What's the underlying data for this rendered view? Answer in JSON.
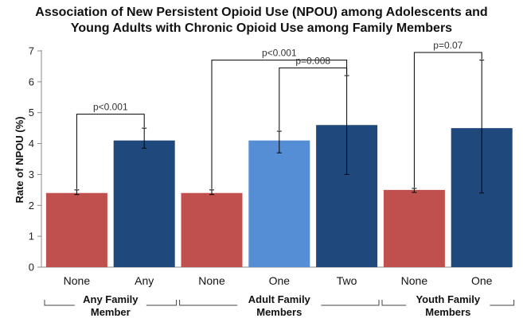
{
  "chart_data": {
    "type": "bar",
    "title_lines": [
      "Association of New Persistent Opioid Use (NPOU) among Adolescents and",
      "Young Adults with Chronic Opioid Use among Family Members"
    ],
    "ylabel": "Rate of NPOU (%)",
    "ylim": [
      0,
      7
    ],
    "yticks": [
      0,
      1,
      2,
      3,
      4,
      5,
      6,
      7
    ],
    "grid": false,
    "bars": [
      {
        "category": "None",
        "value": 2.4,
        "err_low": 2.35,
        "err_high": 2.5,
        "color": "#c0504d"
      },
      {
        "category": "Any",
        "value": 4.1,
        "err_low": 3.85,
        "err_high": 4.5,
        "color": "#1f497d"
      },
      {
        "category": "None",
        "value": 2.4,
        "err_low": 2.35,
        "err_high": 2.5,
        "color": "#c0504d"
      },
      {
        "category": "One",
        "value": 4.1,
        "err_low": 3.7,
        "err_high": 4.4,
        "color": "#558ed5"
      },
      {
        "category": "Two",
        "value": 4.6,
        "err_low": 3.0,
        "err_high": 6.2,
        "color": "#1f497d"
      },
      {
        "category": "None",
        "value": 2.5,
        "err_low": 2.42,
        "err_high": 2.55,
        "color": "#c0504d"
      },
      {
        "category": "One",
        "value": 4.5,
        "err_low": 2.4,
        "err_high": 6.7,
        "color": "#1f497d"
      }
    ],
    "groups": [
      {
        "label_lines": [
          "Any Family",
          "Member"
        ],
        "bars": [
          0,
          1
        ]
      },
      {
        "label_lines": [
          "Adult Family",
          "Members"
        ],
        "bars": [
          2,
          3,
          4
        ]
      },
      {
        "label_lines": [
          "Youth Family",
          "Members"
        ],
        "bars": [
          5,
          6
        ]
      }
    ],
    "annotations": [
      {
        "text": "p<0.001",
        "from_bar": 0,
        "to_bar": 1,
        "y": 4.95
      },
      {
        "text": "p<0.001",
        "from_bar": 2,
        "to_bar": 4,
        "y": 6.7
      },
      {
        "text": "p=0.008",
        "from_bar": 3,
        "to_bar": 4,
        "y": 6.45
      },
      {
        "text": "p=0.07",
        "from_bar": 5,
        "to_bar": 6,
        "y": 6.95
      }
    ]
  }
}
